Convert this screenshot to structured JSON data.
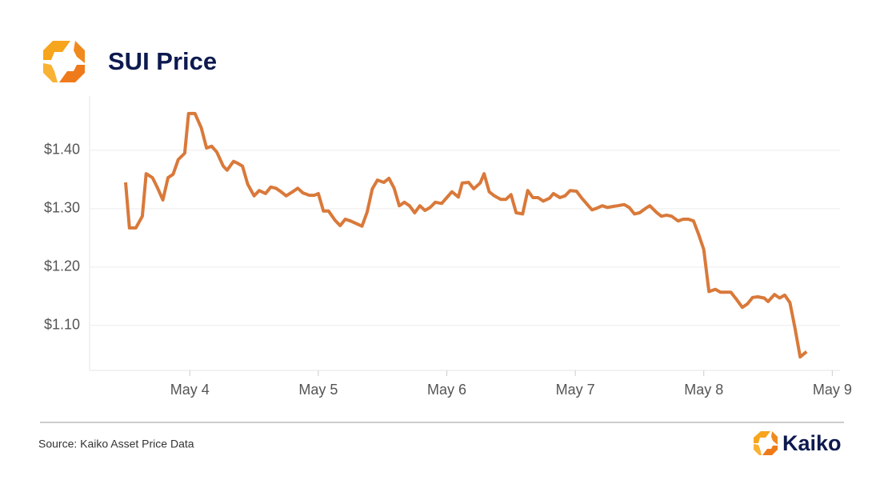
{
  "chart_data": {
    "type": "line",
    "title": "SUI Price",
    "source": "Source: Kaiko Asset Price Data",
    "brand": "Kaiko",
    "x": [
      3.5,
      3.53,
      3.58,
      3.63,
      3.66,
      3.71,
      3.75,
      3.79,
      3.83,
      3.87,
      3.91,
      3.96,
      3.99,
      4.04,
      4.09,
      4.13,
      4.17,
      4.21,
      4.26,
      4.29,
      4.34,
      4.37,
      4.41,
      4.45,
      4.5,
      4.54,
      4.59,
      4.63,
      4.67,
      4.71,
      4.75,
      4.8,
      4.84,
      4.88,
      4.93,
      4.97,
      5.0,
      5.04,
      5.08,
      5.13,
      5.17,
      5.21,
      5.25,
      5.3,
      5.34,
      5.38,
      5.42,
      5.46,
      5.51,
      5.55,
      5.59,
      5.63,
      5.67,
      5.71,
      5.75,
      5.79,
      5.83,
      5.87,
      5.91,
      5.96,
      6.0,
      6.04,
      6.09,
      6.12,
      6.17,
      6.21,
      6.26,
      6.29,
      6.33,
      6.37,
      6.42,
      6.46,
      6.5,
      6.54,
      6.59,
      6.63,
      6.67,
      6.71,
      6.75,
      6.8,
      6.83,
      6.88,
      6.92,
      6.96,
      7.01,
      7.05,
      7.09,
      7.13,
      7.17,
      7.21,
      7.25,
      7.3,
      7.33,
      7.38,
      7.42,
      7.46,
      7.5,
      7.55,
      7.58,
      7.63,
      7.67,
      7.71,
      7.75,
      7.8,
      7.84,
      7.88,
      7.92,
      7.96,
      8.0,
      8.04,
      8.09,
      8.13,
      8.17,
      8.21,
      8.26,
      8.3,
      8.34,
      8.38,
      8.42,
      8.47,
      8.5,
      8.55,
      8.59,
      8.63,
      8.67,
      8.71,
      8.75,
      8.8
    ],
    "series": [
      {
        "name": "SUI",
        "color": "#d9793a",
        "values": [
          1.345,
          1.267,
          1.267,
          1.287,
          1.36,
          1.353,
          1.335,
          1.315,
          1.353,
          1.359,
          1.384,
          1.395,
          1.463,
          1.463,
          1.438,
          1.404,
          1.407,
          1.397,
          1.373,
          1.366,
          1.381,
          1.378,
          1.373,
          1.342,
          1.322,
          1.331,
          1.326,
          1.337,
          1.335,
          1.329,
          1.322,
          1.329,
          1.335,
          1.327,
          1.323,
          1.323,
          1.326,
          1.296,
          1.296,
          1.28,
          1.271,
          1.282,
          1.279,
          1.274,
          1.27,
          1.294,
          1.334,
          1.349,
          1.345,
          1.352,
          1.335,
          1.305,
          1.311,
          1.305,
          1.293,
          1.305,
          1.297,
          1.302,
          1.311,
          1.309,
          1.319,
          1.329,
          1.32,
          1.344,
          1.345,
          1.334,
          1.344,
          1.36,
          1.329,
          1.322,
          1.316,
          1.316,
          1.324,
          1.293,
          1.291,
          1.331,
          1.319,
          1.319,
          1.313,
          1.318,
          1.326,
          1.319,
          1.322,
          1.331,
          1.33,
          1.318,
          1.308,
          1.298,
          1.301,
          1.305,
          1.302,
          1.304,
          1.305,
          1.307,
          1.302,
          1.291,
          1.293,
          1.301,
          1.305,
          1.294,
          1.287,
          1.289,
          1.287,
          1.279,
          1.282,
          1.282,
          1.279,
          1.256,
          1.23,
          1.158,
          1.162,
          1.157,
          1.157,
          1.157,
          1.143,
          1.131,
          1.137,
          1.148,
          1.149,
          1.147,
          1.141,
          1.153,
          1.147,
          1.152,
          1.139,
          1.095,
          1.046,
          1.055
        ]
      }
    ],
    "xlim": [
      3.22,
      9.06
    ],
    "xticks": [
      {
        "value": 4,
        "label": "May 4"
      },
      {
        "value": 5,
        "label": "May 5"
      },
      {
        "value": 6,
        "label": "May 6"
      },
      {
        "value": 7,
        "label": "May 7"
      },
      {
        "value": 8,
        "label": "May 8"
      },
      {
        "value": 9,
        "label": "May 9"
      }
    ],
    "ylim": [
      1.023,
      1.493
    ],
    "yticks": [
      {
        "value": 1.1,
        "label": "$1.10"
      },
      {
        "value": 1.2,
        "label": "$1.20"
      },
      {
        "value": 1.3,
        "label": "$1.30"
      },
      {
        "value": 1.4,
        "label": "$1.40"
      }
    ],
    "grid": true
  }
}
